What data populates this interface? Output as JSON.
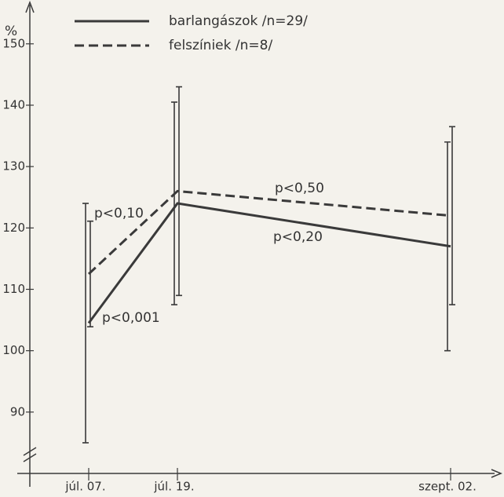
{
  "chart_data": {
    "type": "line",
    "y_label": "%",
    "categories": [
      "júl. 07.",
      "júl. 19.",
      "szept. 02."
    ],
    "series": [
      {
        "name": "barlangászok  /n=29/",
        "color": "#3a3a3a",
        "style": "solid",
        "values": [
          104.5,
          124,
          117
        ],
        "errors": [
          19.5,
          16.5,
          17
        ]
      },
      {
        "name": "felszíniek  /n=8/",
        "color": "#3a3a3a",
        "style": "dashed",
        "values": [
          112.5,
          126,
          122
        ],
        "errors": [
          8.6,
          17,
          14.5
        ]
      }
    ],
    "annotations": [
      "p<0,10",
      "p<0,001",
      "p<0,50",
      "p<0,20"
    ],
    "ylim": [
      80,
      156.5
    ],
    "yticks": [
      90,
      100,
      110,
      120,
      130,
      140,
      150
    ],
    "grid": false
  }
}
